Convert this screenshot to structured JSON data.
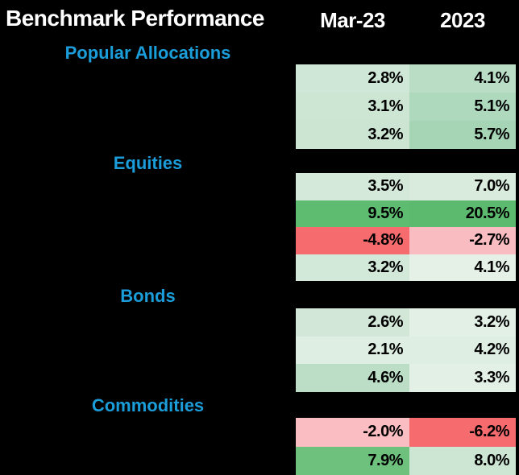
{
  "header": {
    "title": "Benchmark Performance",
    "col_mar23": "Mar-23",
    "col_2023": "2023"
  },
  "colors": {
    "background": "#000000",
    "header_text": "#ffffff",
    "section_text": "#1b9dd9",
    "cell_text": "#000000",
    "positive_strong": "#5ebc71",
    "negative_strong": "#f66b6e",
    "negative_soft": "#f9bec2"
  },
  "sections": [
    {
      "label": "Popular Allocations",
      "rows": [
        {
          "mar23": "2.8%",
          "y2023": "4.1%",
          "mar23_bg": "#cfe7d6",
          "y2023_bg": "#b9ddc5"
        },
        {
          "mar23": "3.1%",
          "y2023": "5.1%",
          "mar23_bg": "#cde6d4",
          "y2023_bg": "#afd9bd"
        },
        {
          "mar23": "3.2%",
          "y2023": "5.7%",
          "mar23_bg": "#cbe5d2",
          "y2023_bg": "#a5d5b5"
        }
      ]
    },
    {
      "label": "Equities",
      "rows": [
        {
          "mar23": "3.5%",
          "y2023": "7.0%",
          "mar23_bg": "#d5e9da",
          "y2023_bg": "#d9ebdc"
        },
        {
          "mar23": "9.5%",
          "y2023": "20.5%",
          "mar23_bg": "#5ebc71",
          "y2023_bg": "#5bba6e"
        },
        {
          "mar23": "-4.8%",
          "y2023": "-2.7%",
          "mar23_bg": "#f66b6e",
          "y2023_bg": "#f9bcc0"
        },
        {
          "mar23": "3.2%",
          "y2023": "4.1%",
          "mar23_bg": "#d2e8d8",
          "y2023_bg": "#e5f1e7"
        }
      ]
    },
    {
      "label": "Bonds",
      "rows": [
        {
          "mar23": "2.6%",
          "y2023": "3.2%",
          "mar23_bg": "#d2e7d7",
          "y2023_bg": "#e3f0e6"
        },
        {
          "mar23": "2.1%",
          "y2023": "4.2%",
          "mar23_bg": "#dfeee2",
          "y2023_bg": "#dfeee3"
        },
        {
          "mar23": "4.6%",
          "y2023": "3.3%",
          "mar23_bg": "#bcdec7",
          "y2023_bg": "#e3f0e6"
        }
      ]
    },
    {
      "label": "Commodities",
      "rows": [
        {
          "mar23": "-2.0%",
          "y2023": "-6.2%",
          "mar23_bg": "#fabec2",
          "y2023_bg": "#f66b6e"
        },
        {
          "mar23": "7.9%",
          "y2023": "8.0%",
          "mar23_bg": "#6ec17d",
          "y2023_bg": "#cde6d4"
        }
      ]
    }
  ],
  "chart_data": {
    "type": "table",
    "title": "Benchmark Performance",
    "columns": [
      "Mar-23",
      "2023"
    ],
    "units": "%",
    "layout_hints": {
      "background": "black",
      "row_labels_hidden": true,
      "conditional_formatting": "red-white-green color scale per column",
      "section_headers_color": "#1b9dd9"
    },
    "sections": [
      {
        "name": "Popular Allocations",
        "rows": [
          {
            "mar23": 2.8,
            "y2023": 4.1
          },
          {
            "mar23": 3.1,
            "y2023": 5.1
          },
          {
            "mar23": 3.2,
            "y2023": 5.7
          }
        ]
      },
      {
        "name": "Equities",
        "rows": [
          {
            "mar23": 3.5,
            "y2023": 7.0
          },
          {
            "mar23": 9.5,
            "y2023": 20.5
          },
          {
            "mar23": -4.8,
            "y2023": -2.7
          },
          {
            "mar23": 3.2,
            "y2023": 4.1
          }
        ]
      },
      {
        "name": "Bonds",
        "rows": [
          {
            "mar23": 2.6,
            "y2023": 3.2
          },
          {
            "mar23": 2.1,
            "y2023": 4.2
          },
          {
            "mar23": 4.6,
            "y2023": 3.3
          }
        ]
      },
      {
        "name": "Commodities",
        "rows": [
          {
            "mar23": -2.0,
            "y2023": -6.2
          },
          {
            "mar23": 7.9,
            "y2023": 8.0
          }
        ]
      }
    ]
  }
}
